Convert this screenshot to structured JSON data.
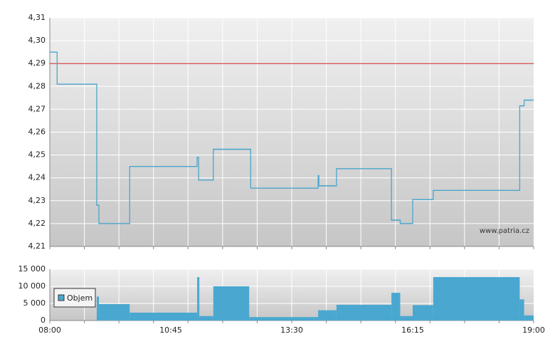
{
  "chart_data": [
    {
      "type": "line",
      "step": true,
      "x": [
        "08:00",
        "08:10",
        "09:04",
        "09:07",
        "09:49",
        "11:21",
        "11:23",
        "11:43",
        "12:34",
        "14:06",
        "14:07",
        "14:31",
        "15:46",
        "15:58",
        "16:15",
        "16:43",
        "18:41",
        "18:47"
      ],
      "series": [
        {
          "color": "#4aa6cc",
          "values": [
            4.295,
            4.281,
            4.228,
            4.22,
            4.245,
            4.249,
            4.239,
            4.2525,
            4.2355,
            4.241,
            4.2365,
            4.244,
            4.2215,
            4.22,
            4.2305,
            4.2345,
            4.2715,
            4.274
          ]
        }
      ],
      "reference_line": {
        "value": 4.29,
        "color": "#cc2222"
      },
      "xlim": [
        "08:00",
        "19:00"
      ],
      "ylim": [
        4.21,
        4.31
      ],
      "yticks": [
        {
          "value": 4.21,
          "label": "4,21"
        },
        {
          "value": 4.22,
          "label": "4,22"
        },
        {
          "value": 4.23,
          "label": "4,23"
        },
        {
          "value": 4.24,
          "label": "4,24"
        },
        {
          "value": 4.25,
          "label": "4,25"
        },
        {
          "value": 4.26,
          "label": "4,26"
        },
        {
          "value": 4.27,
          "label": "4,27"
        },
        {
          "value": 4.28,
          "label": "4,28"
        },
        {
          "value": 4.29,
          "label": "4,29"
        },
        {
          "value": 4.3,
          "label": "4,30"
        },
        {
          "value": 4.31,
          "label": "4,31"
        }
      ],
      "grid": true,
      "watermark": "www.patria.cz"
    },
    {
      "type": "area",
      "step": true,
      "x": [
        "08:00",
        "09:04",
        "09:07",
        "09:49",
        "11:21",
        "11:24",
        "11:43",
        "12:32",
        "14:06",
        "14:31",
        "15:46",
        "15:58",
        "16:15",
        "16:43",
        "18:41",
        "18:47"
      ],
      "series": [
        {
          "name": "Objem",
          "color": "#4aa8d0",
          "values": [
            0,
            7000,
            4800,
            2300,
            12700,
            1300,
            10000,
            1000,
            3000,
            4600,
            8100,
            1300,
            4500,
            12700,
            6200,
            1500
          ]
        }
      ],
      "xlim": [
        "08:00",
        "19:00"
      ],
      "xticks": [
        "08:00",
        "10:45",
        "13:30",
        "16:15",
        "19:00"
      ],
      "ylim": [
        0,
        15000
      ],
      "yticks": [
        0,
        {
          "value": 5000,
          "label": "5 000"
        },
        {
          "value": 10000,
          "label": "10 000"
        },
        {
          "value": 15000,
          "label": "15 000"
        }
      ],
      "grid": true,
      "legend": "upper left"
    }
  ]
}
